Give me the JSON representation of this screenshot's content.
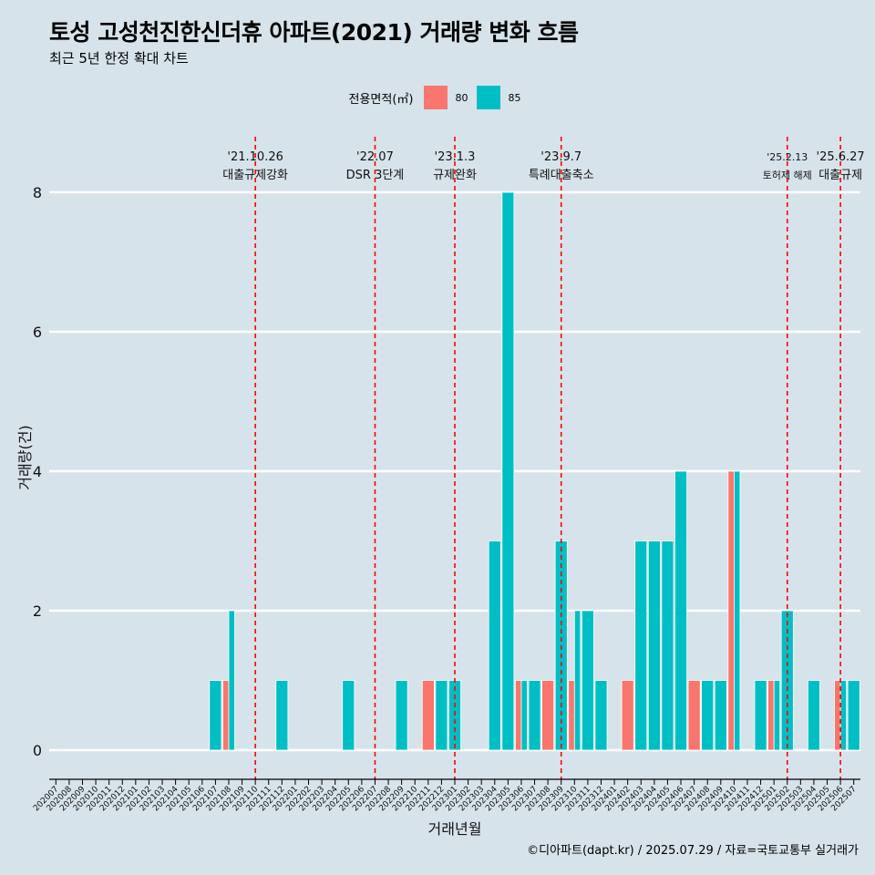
{
  "title": "토성 고성천진한신더휴 아파트(2021) 거래량 변화 흐름",
  "subtitle": "최근 5년 한정 확대 차트",
  "caption": "©디아파트(dapt.kr) / 2025.07.29 / 자료=국토교통부 실거래가",
  "legend": {
    "title": "전용면적(㎡)",
    "items": [
      {
        "label": "80",
        "color": "#f8766d"
      },
      {
        "label": "85",
        "color": "#00bfc4"
      }
    ],
    "position": "top"
  },
  "chart_data": {
    "type": "bar",
    "stacking": "dodge",
    "xlabel": "거래년월",
    "ylabel": "거래량(건)",
    "ylim": [
      0,
      8
    ],
    "yticks": [
      0,
      2,
      4,
      6,
      8
    ],
    "grid": "horizontal-major",
    "categories": [
      "202007",
      "202008",
      "202009",
      "202010",
      "202011",
      "202012",
      "202101",
      "202102",
      "202103",
      "202104",
      "202105",
      "202106",
      "202107",
      "202108",
      "202109",
      "202110",
      "202111",
      "202112",
      "202201",
      "202202",
      "202203",
      "202204",
      "202205",
      "202206",
      "202207",
      "202208",
      "202209",
      "202210",
      "202211",
      "202212",
      "202301",
      "202302",
      "202303",
      "202304",
      "202305",
      "202306",
      "202307",
      "202308",
      "202309",
      "202310",
      "202311",
      "202312",
      "202401",
      "202402",
      "202403",
      "202404",
      "202405",
      "202406",
      "202407",
      "202408",
      "202409",
      "202410",
      "202411",
      "202412",
      "202501",
      "202502",
      "202503",
      "202504",
      "202505",
      "202506",
      "202507"
    ],
    "series": [
      {
        "name": "80",
        "color": "#f8766d",
        "values": [
          0,
          0,
          0,
          0,
          0,
          0,
          0,
          0,
          0,
          0,
          0,
          0,
          0,
          1,
          0,
          0,
          0,
          0,
          0,
          0,
          0,
          0,
          0,
          0,
          0,
          0,
          0,
          0,
          1,
          0,
          0,
          0,
          0,
          0,
          0,
          1,
          0,
          1,
          0,
          1,
          0,
          0,
          0,
          1,
          0,
          0,
          0,
          0,
          1,
          0,
          0,
          4,
          0,
          0,
          1,
          0,
          0,
          0,
          0,
          1,
          0
        ]
      },
      {
        "name": "85",
        "color": "#00bfc4",
        "values": [
          0,
          0,
          0,
          0,
          0,
          0,
          0,
          0,
          0,
          0,
          0,
          0,
          1,
          2,
          0,
          0,
          0,
          1,
          0,
          0,
          0,
          0,
          1,
          0,
          0,
          0,
          1,
          0,
          0,
          1,
          1,
          0,
          0,
          3,
          8,
          1,
          1,
          0,
          3,
          2,
          2,
          1,
          0,
          0,
          3,
          3,
          3,
          4,
          0,
          1,
          1,
          4,
          0,
          1,
          1,
          2,
          0,
          1,
          0,
          1,
          1
        ]
      }
    ],
    "events": [
      {
        "date": "'21.10.26",
        "label": "대출규제강화",
        "at": "202110"
      },
      {
        "date": "'22.07",
        "label": "DSR 3단계",
        "at": "202207"
      },
      {
        "date": "'23.1.3",
        "label": "규제완화",
        "at": "202301"
      },
      {
        "date": "'23.9.7",
        "label": "특례대출축소",
        "at": "202309"
      },
      {
        "date": "'25.2.13",
        "label": "토허제 해제",
        "at": "202502"
      },
      {
        "date": "'25.6.27",
        "label": "대출규제",
        "at": "202506"
      }
    ]
  }
}
